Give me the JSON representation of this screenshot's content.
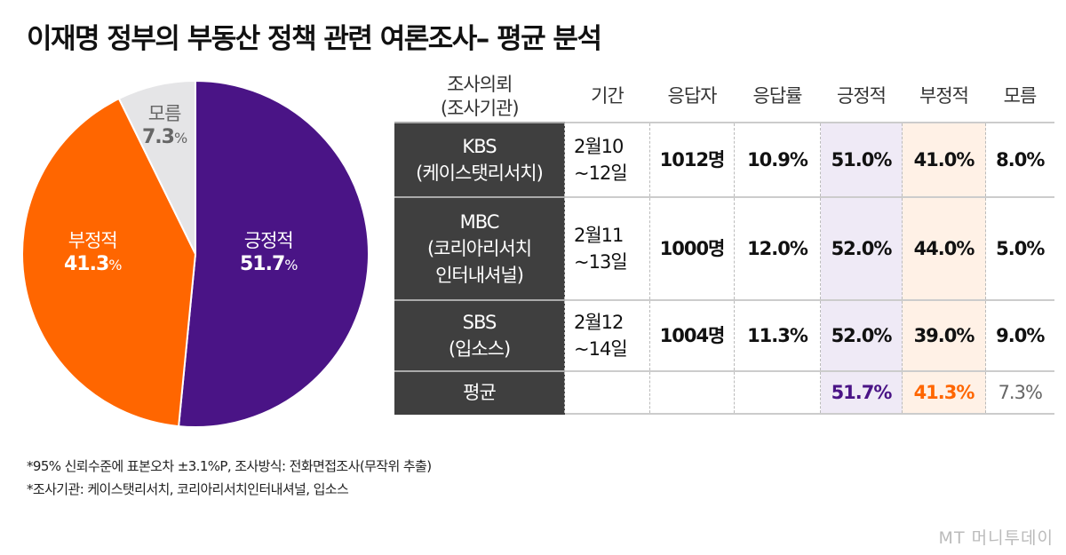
{
  "title": "이재명 정부의 부동산 정책 관련 여론조사– 평균 분석",
  "chart_data": [
    {
      "type": "pie",
      "start": "top",
      "direction": "clockwise",
      "slices": [
        {
          "label": "긍정적",
          "value": 51.7,
          "display": "51.7",
          "color": "#4a1486"
        },
        {
          "label": "부정적",
          "value": 41.3,
          "display": "41.3",
          "color": "#ff6600"
        },
        {
          "label": "모름",
          "value": 7.3,
          "display": "7.3",
          "color": "#e5e5e7"
        }
      ],
      "unit": "%"
    },
    {
      "type": "table",
      "headers": [
        "조사의뢰\n(조사기관)",
        "기간",
        "응답자",
        "응답률",
        "긍정적",
        "부정적",
        "모름"
      ],
      "rows": [
        {
          "org": "KBS",
          "agency": "(케이스탯리서치)",
          "period1": "2월10",
          "period2": "~12일",
          "n": "1012명",
          "rate": "10.9%",
          "pos": "51.0%",
          "neg": "41.0%",
          "dk": "8.0%"
        },
        {
          "org": "MBC",
          "agency": "(코리아리서치\n인터내셔널)",
          "period1": "2월11",
          "period2": "~13일",
          "n": "1000명",
          "rate": "12.0%",
          "pos": "52.0%",
          "neg": "44.0%",
          "dk": "5.0%"
        },
        {
          "org": "SBS",
          "agency": "(입소스)",
          "period1": "2월12",
          "period2": "~14일",
          "n": "1004명",
          "rate": "11.3%",
          "pos": "52.0%",
          "neg": "39.0%",
          "dk": "9.0%"
        }
      ],
      "average": {
        "label": "평균",
        "pos": "51.7%",
        "neg": "41.3%",
        "dk": "7.3%"
      }
    }
  ],
  "colors": {
    "positive": "#4a1486",
    "negative": "#ff6600",
    "unknown": "#666666"
  },
  "notes": [
    "*95% 신뢰수준에 표본오차 ±3.1%P, 조사방식: 전화면접조사(무작위 추출)",
    "*조사기관: 케이스탯리서치, 코리아리서치인터내셔널, 입소스"
  ],
  "logo": "MT 머니투데이"
}
